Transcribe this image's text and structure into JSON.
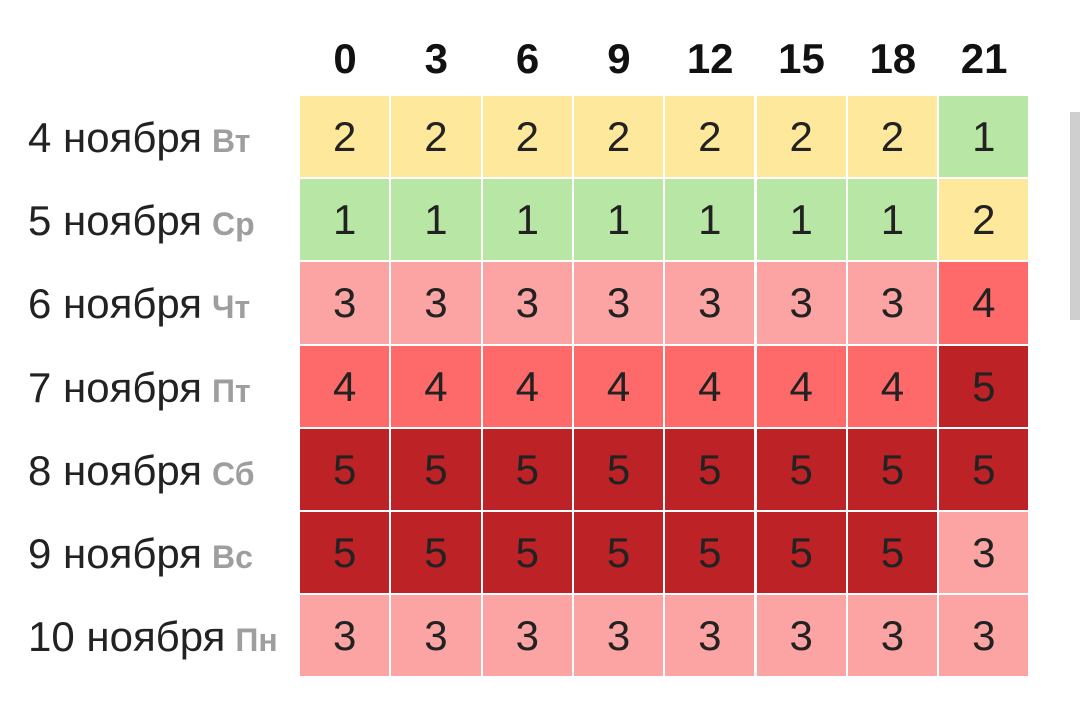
{
  "chart_data": {
    "type": "heatmap",
    "columns": [
      "0",
      "3",
      "6",
      "9",
      "12",
      "15",
      "18",
      "21"
    ],
    "rows": [
      {
        "date": "4 ноября",
        "day": "Вт",
        "values": [
          2,
          2,
          2,
          2,
          2,
          2,
          2,
          1
        ]
      },
      {
        "date": "5 ноября",
        "day": "Ср",
        "values": [
          1,
          1,
          1,
          1,
          1,
          1,
          1,
          2
        ]
      },
      {
        "date": "6 ноября",
        "day": "Чт",
        "values": [
          3,
          3,
          3,
          3,
          3,
          3,
          3,
          4
        ]
      },
      {
        "date": "7 ноября",
        "day": "Пт",
        "values": [
          4,
          4,
          4,
          4,
          4,
          4,
          4,
          5
        ]
      },
      {
        "date": "8 ноября",
        "day": "Сб",
        "values": [
          5,
          5,
          5,
          5,
          5,
          5,
          5,
          5
        ]
      },
      {
        "date": "9 ноября",
        "day": "Вс",
        "values": [
          5,
          5,
          5,
          5,
          5,
          5,
          5,
          3
        ]
      },
      {
        "date": "10 ноября",
        "day": "Пн",
        "values": [
          3,
          3,
          3,
          3,
          3,
          3,
          3,
          3
        ]
      }
    ],
    "level_colors": {
      "1": "#b8e6a4",
      "2": "#fde89b",
      "3": "#fca3a3",
      "4": "#fe6a6a",
      "5": "#bd2227"
    }
  }
}
